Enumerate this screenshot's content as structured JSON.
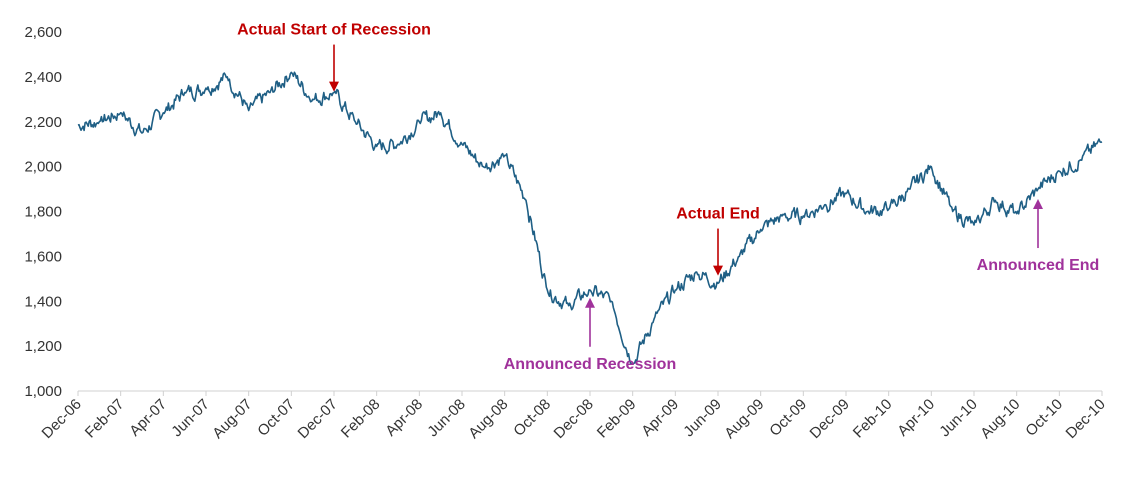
{
  "chart_data": {
    "type": "line",
    "title": "",
    "xlabel": "",
    "ylabel": "",
    "ylim": [
      1000,
      2600
    ],
    "yticks": [
      1000,
      1200,
      1400,
      1600,
      1800,
      2000,
      2200,
      2400,
      2600
    ],
    "ytick_labels": [
      "1,000",
      "1,200",
      "1,400",
      "1,600",
      "1,800",
      "2,000",
      "2,200",
      "2,400",
      "2,600"
    ],
    "xticks": [
      "Dec-06",
      "Feb-07",
      "Apr-07",
      "Jun-07",
      "Aug-07",
      "Oct-07",
      "Dec-07",
      "Feb-08",
      "Apr-08",
      "Jun-08",
      "Aug-08",
      "Oct-08",
      "Dec-08",
      "Feb-09",
      "Apr-09",
      "Jun-09",
      "Aug-09",
      "Oct-09",
      "Dec-09",
      "Feb-10",
      "Apr-10",
      "Jun-10",
      "Aug-10",
      "Oct-10",
      "Dec-10"
    ],
    "grid": false,
    "legend": "none",
    "line_color": "#1f5f85",
    "series": [
      {
        "x": [
          "Dec-06",
          "Jan-07",
          "Feb-07",
          "Mar-07",
          "Apr-07",
          "May-07",
          "Jun-07",
          "Jul-07",
          "Aug-07",
          "Sep-07",
          "Oct-07",
          "Nov-07",
          "Dec-07",
          "Jan-08",
          "Feb-08",
          "Mar-08",
          "Apr-08",
          "May-08",
          "Jun-08",
          "Jul-08",
          "Aug-08",
          "Sep-08",
          "Oct-08",
          "Nov-08",
          "Dec-08",
          "Jan-09",
          "Feb-09",
          "Mar-09",
          "Apr-09",
          "May-09",
          "Jun-09",
          "Jul-09",
          "Aug-09",
          "Sep-09",
          "Oct-09",
          "Nov-09",
          "Dec-09",
          "Jan-10",
          "Feb-10",
          "Mar-10",
          "Apr-10",
          "May-10",
          "Jun-10",
          "Jul-10",
          "Aug-10",
          "Sep-10",
          "Oct-10",
          "Nov-10",
          "Dec-10"
        ],
        "values": [
          2185,
          2200,
          2240,
          2150,
          2240,
          2330,
          2350,
          2400,
          2250,
          2330,
          2420,
          2300,
          2330,
          2200,
          2090,
          2100,
          2200,
          2240,
          2100,
          2000,
          2050,
          1850,
          1450,
          1380,
          1450,
          1400,
          1120,
          1320,
          1450,
          1530,
          1480,
          1600,
          1720,
          1780,
          1780,
          1830,
          1880,
          1800,
          1810,
          1900,
          2000,
          1800,
          1740,
          1850,
          1790,
          1900,
          1980,
          2030,
          2110
        ]
      }
    ],
    "annotations": [
      {
        "text": "Actual Start of Recession",
        "x": "Dec-07",
        "color": "#c00000",
        "direction": "down",
        "value": 2330
      },
      {
        "text": "Announced Recession",
        "x": "Dec-08",
        "color": "#a0329b",
        "direction": "up",
        "value": 1420
      },
      {
        "text": "Actual End",
        "x": "Jun-09",
        "color": "#c00000",
        "direction": "down",
        "value": 1510
      },
      {
        "text": "Announced End",
        "x": "Sep-10",
        "color": "#a0329b",
        "direction": "up",
        "value": 1860
      }
    ]
  }
}
